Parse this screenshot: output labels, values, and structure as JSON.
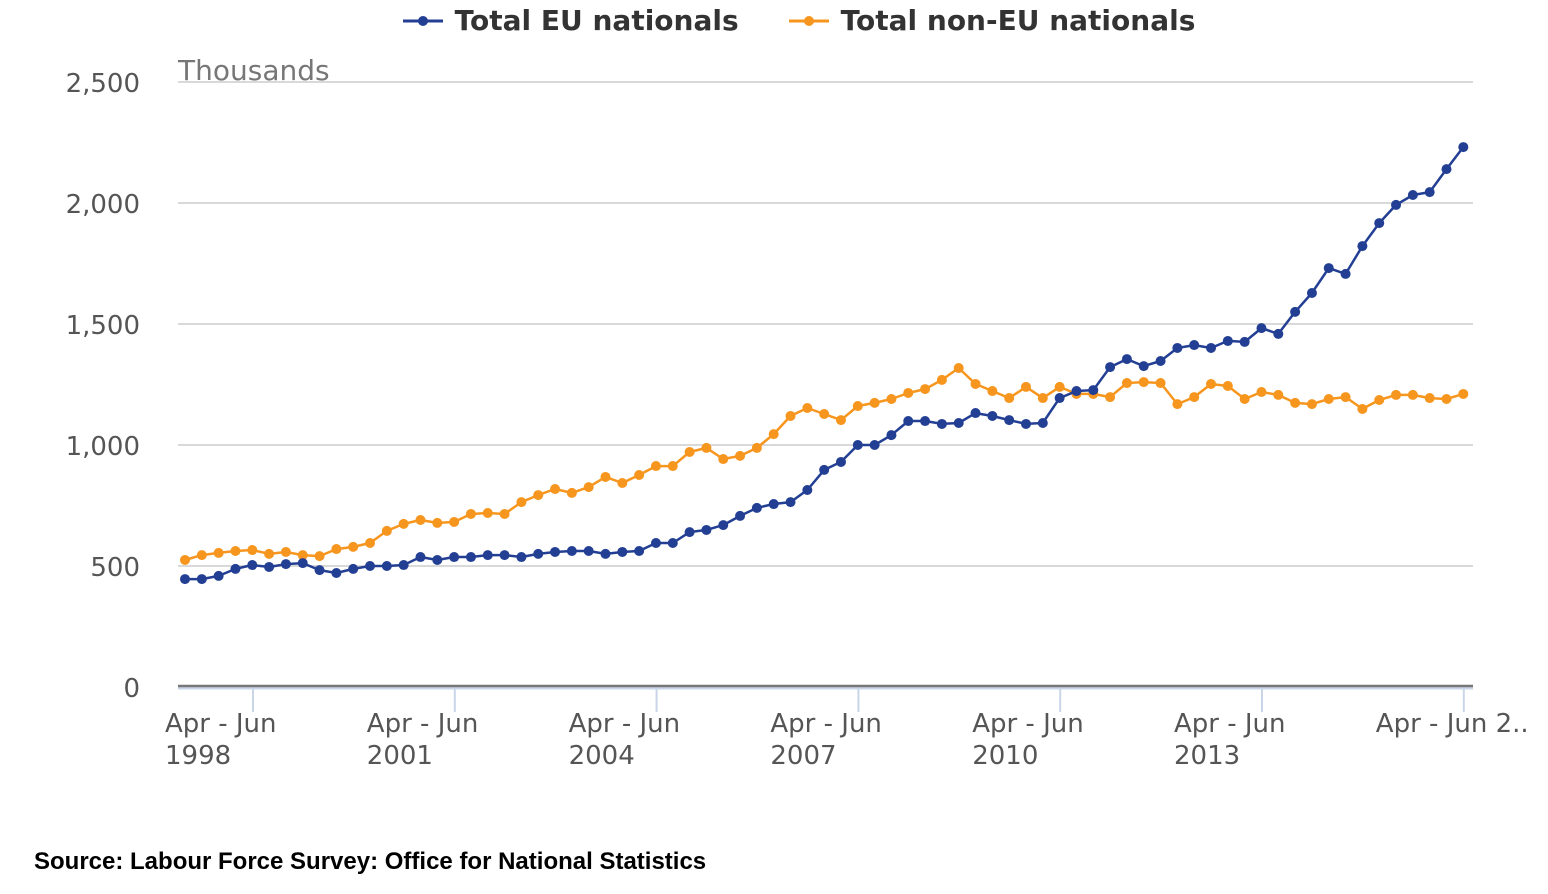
{
  "chart_data": {
    "type": "line",
    "title": "",
    "xlabel": "",
    "ylabel": "Thousands",
    "ylim": [
      0,
      2500
    ],
    "yticks": [
      0,
      500,
      1000,
      1500,
      2000,
      2500
    ],
    "ytick_labels": [
      "0",
      "500",
      "1,000",
      "1,500",
      "2,000",
      "2,500"
    ],
    "grid": true,
    "legend_position": "top-center",
    "x_start": "Apr - Jun 1997",
    "x_frequency": "quarterly",
    "x_tick_every": 12,
    "x_tick_first_index": 4,
    "x_ticks": [
      {
        "line1": "Apr - Jun",
        "line2": "1998"
      },
      {
        "line1": "Apr - Jun",
        "line2": "2001"
      },
      {
        "line1": "Apr - Jun",
        "line2": "2004"
      },
      {
        "line1": "Apr - Jun",
        "line2": "2007"
      },
      {
        "line1": "Apr - Jun",
        "line2": "2010"
      },
      {
        "line1": "Apr - Jun",
        "line2": "2013"
      },
      {
        "line1": "Apr - Jun 2..",
        "line2": ""
      }
    ],
    "series": [
      {
        "name": "Total EU nationals",
        "color": "#233f94",
        "values": [
          446,
          446,
          459,
          488,
          504,
          496,
          508,
          512,
          483,
          471,
          488,
          500,
          500,
          504,
          537,
          525,
          537,
          537,
          545,
          545,
          537,
          550,
          558,
          562,
          562,
          550,
          558,
          562,
          595,
          595,
          640,
          649,
          669,
          707,
          740,
          756,
          764,
          814,
          897,
          930,
          1000,
          1000,
          1041,
          1099,
          1099,
          1087,
          1091,
          1132,
          1120,
          1103,
          1087,
          1091,
          1194,
          1223,
          1227,
          1322,
          1355,
          1326,
          1347,
          1401,
          1413,
          1401,
          1430,
          1426,
          1483,
          1459,
          1550,
          1628,
          1731,
          1707,
          1822,
          1917,
          1992,
          2033,
          2045,
          2140,
          2231
        ]
      },
      {
        "name": "Total non-EU nationals",
        "color": "#f7961e",
        "values": [
          525,
          545,
          554,
          562,
          566,
          550,
          558,
          545,
          541,
          570,
          579,
          595,
          645,
          674,
          690,
          678,
          682,
          715,
          719,
          715,
          764,
          793,
          818,
          802,
          826,
          868,
          843,
          876,
          913,
          913,
          971,
          988,
          942,
          955,
          988,
          1045,
          1120,
          1153,
          1128,
          1103,
          1161,
          1174,
          1190,
          1215,
          1231,
          1269,
          1318,
          1252,
          1223,
          1194,
          1240,
          1194,
          1240,
          1211,
          1211,
          1198,
          1256,
          1260,
          1256,
          1169,
          1198,
          1252,
          1244,
          1190,
          1219,
          1207,
          1174,
          1169,
          1190,
          1198,
          1149,
          1186,
          1207,
          1207,
          1194,
          1190,
          1211
        ]
      }
    ]
  },
  "source": "Source: Labour Force Survey: Office for National Statistics"
}
